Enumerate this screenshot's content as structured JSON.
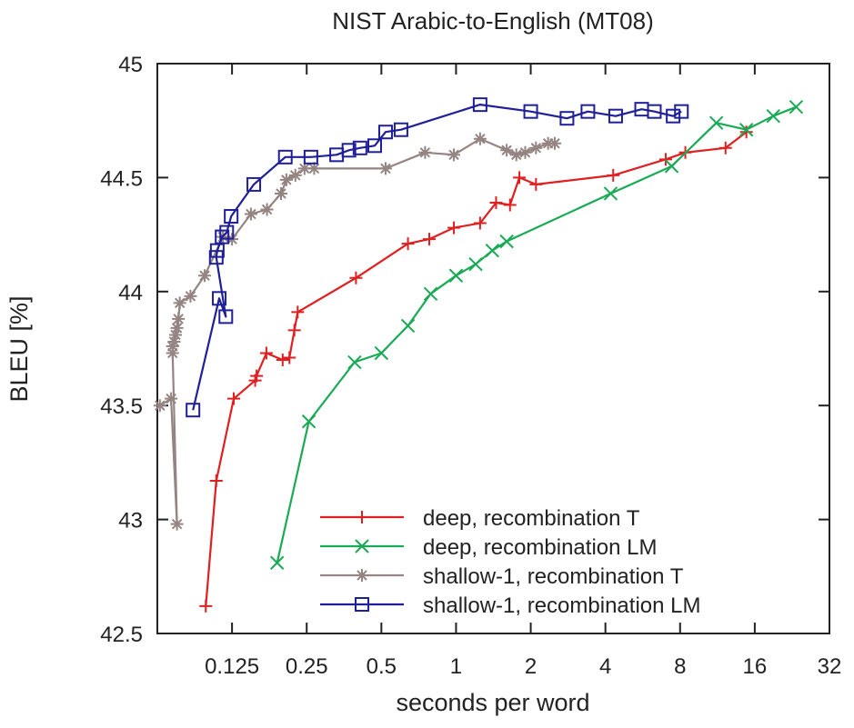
{
  "chart_data": {
    "type": "line",
    "title": "NIST Arabic-to-English (MT08)",
    "xlabel": "seconds per word",
    "ylabel": "BLEU [%]",
    "x_scale": "log2",
    "xlim": [
      0.0625,
      32
    ],
    "ylim": [
      42.5,
      45
    ],
    "x_ticks": [
      {
        "value": 0.125,
        "label": "0.125"
      },
      {
        "value": 0.25,
        "label": "0.25"
      },
      {
        "value": 0.5,
        "label": "0.5"
      },
      {
        "value": 1,
        "label": "1"
      },
      {
        "value": 2,
        "label": "2"
      },
      {
        "value": 4,
        "label": "4"
      },
      {
        "value": 8,
        "label": "8"
      },
      {
        "value": 16,
        "label": "16"
      },
      {
        "value": 32,
        "label": "32"
      }
    ],
    "y_ticks": [
      {
        "value": 42.5,
        "label": "42.5"
      },
      {
        "value": 43,
        "label": "43"
      },
      {
        "value": 43.5,
        "label": "43.5"
      },
      {
        "value": 44,
        "label": "44"
      },
      {
        "value": 44.5,
        "label": "44.5"
      },
      {
        "value": 45,
        "label": "45"
      }
    ],
    "grid": false,
    "legend_position": "bottom-right",
    "series": [
      {
        "name": "deep, recombination T",
        "color": "#e02020",
        "marker": "plus",
        "points": [
          [
            0.098,
            42.62
          ],
          [
            0.108,
            43.17
          ],
          [
            0.127,
            43.53
          ],
          [
            0.155,
            43.61
          ],
          [
            0.157,
            43.63
          ],
          [
            0.172,
            43.73
          ],
          [
            0.2,
            43.7
          ],
          [
            0.213,
            43.71
          ],
          [
            0.223,
            43.83
          ],
          [
            0.23,
            43.91
          ],
          [
            0.395,
            44.06
          ],
          [
            0.64,
            44.21
          ],
          [
            0.78,
            44.23
          ],
          [
            0.98,
            44.28
          ],
          [
            1.25,
            44.3
          ],
          [
            1.45,
            44.39
          ],
          [
            1.65,
            44.38
          ],
          [
            1.8,
            44.5
          ],
          [
            2.1,
            44.47
          ],
          [
            4.3,
            44.51
          ],
          [
            7.0,
            44.58
          ],
          [
            8.4,
            44.61
          ],
          [
            12.2,
            44.63
          ],
          [
            14.8,
            44.7
          ]
        ]
      },
      {
        "name": "deep, recombination LM",
        "color": "#1aaa55",
        "marker": "cross",
        "points": [
          [
            0.19,
            42.81
          ],
          [
            0.255,
            43.43
          ],
          [
            0.39,
            43.69
          ],
          [
            0.5,
            43.73
          ],
          [
            0.64,
            43.85
          ],
          [
            0.79,
            43.99
          ],
          [
            1.0,
            44.07
          ],
          [
            1.2,
            44.12
          ],
          [
            1.4,
            44.18
          ],
          [
            1.6,
            44.22
          ],
          [
            4.2,
            44.43
          ],
          [
            7.4,
            44.55
          ],
          [
            11.2,
            44.74
          ],
          [
            14.8,
            44.71
          ],
          [
            19.0,
            44.77
          ],
          [
            23.5,
            44.81
          ]
        ]
      },
      {
        "name": "shallow-1, recombination T",
        "color": "#948482",
        "marker": "star",
        "points": [
          [
            0.064,
            43.5
          ],
          [
            0.071,
            43.53
          ],
          [
            0.075,
            42.98
          ],
          [
            0.072,
            43.73
          ],
          [
            0.072,
            43.76
          ],
          [
            0.073,
            43.78
          ],
          [
            0.074,
            43.81
          ],
          [
            0.075,
            43.84
          ],
          [
            0.076,
            43.88
          ],
          [
            0.077,
            43.95
          ],
          [
            0.085,
            43.98
          ],
          [
            0.097,
            44.07
          ],
          [
            0.115,
            44.24
          ],
          [
            0.125,
            44.23
          ],
          [
            0.149,
            44.34
          ],
          [
            0.173,
            44.36
          ],
          [
            0.197,
            44.43
          ],
          [
            0.207,
            44.49
          ],
          [
            0.225,
            44.51
          ],
          [
            0.245,
            44.54
          ],
          [
            0.268,
            44.54
          ],
          [
            0.52,
            44.54
          ],
          [
            0.75,
            44.61
          ],
          [
            0.98,
            44.6
          ],
          [
            1.25,
            44.67
          ],
          [
            1.6,
            44.62
          ],
          [
            1.75,
            44.6
          ],
          [
            1.9,
            44.61
          ],
          [
            2.1,
            44.63
          ],
          [
            2.35,
            44.65
          ],
          [
            2.5,
            44.65
          ]
        ]
      },
      {
        "name": "shallow-1, recombination LM",
        "color": "#1f1f99",
        "marker": "square",
        "points": [
          [
            0.087,
            43.48
          ],
          [
            0.111,
            43.97
          ],
          [
            0.118,
            43.89
          ],
          [
            0.108,
            44.15
          ],
          [
            0.109,
            44.18
          ],
          [
            0.114,
            44.24
          ],
          [
            0.119,
            44.26
          ],
          [
            0.124,
            44.33
          ],
          [
            0.153,
            44.47
          ],
          [
            0.205,
            44.59
          ],
          [
            0.26,
            44.59
          ],
          [
            0.33,
            44.6
          ],
          [
            0.37,
            44.62
          ],
          [
            0.41,
            44.63
          ],
          [
            0.47,
            44.64
          ],
          [
            0.52,
            44.7
          ],
          [
            0.6,
            44.71
          ],
          [
            1.25,
            44.82
          ],
          [
            2.0,
            44.79
          ],
          [
            2.8,
            44.76
          ],
          [
            3.4,
            44.79
          ],
          [
            4.4,
            44.77
          ],
          [
            5.6,
            44.8
          ],
          [
            6.3,
            44.79
          ],
          [
            7.5,
            44.77
          ],
          [
            8.1,
            44.79
          ]
        ]
      }
    ]
  }
}
